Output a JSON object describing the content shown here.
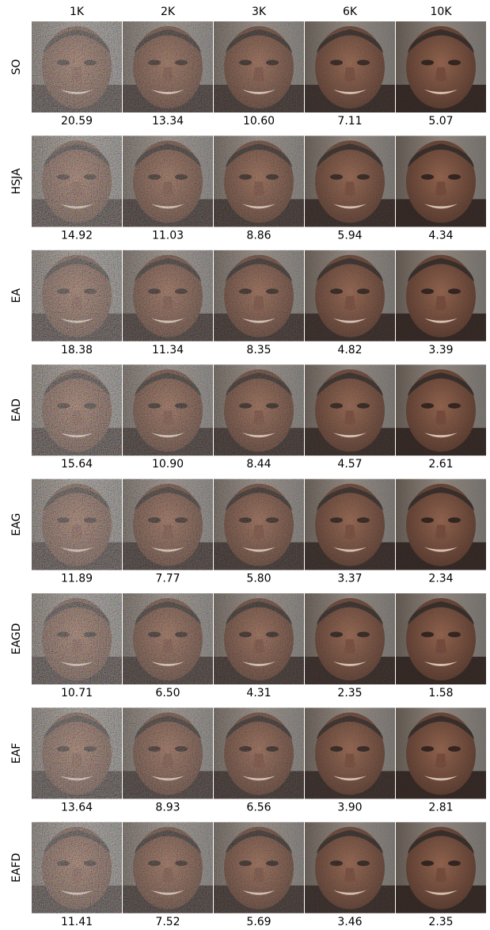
{
  "columns": [
    "1K",
    "2K",
    "3K",
    "6K",
    "10K"
  ],
  "rows": [
    {
      "label": "SO",
      "values": [
        "20.59",
        "13.34",
        "10.60",
        "7.11",
        "5.07"
      ]
    },
    {
      "label": "HSJA",
      "values": [
        "14.92",
        "11.03",
        "8.86",
        "5.94",
        "4.34"
      ]
    },
    {
      "label": "EA",
      "values": [
        "18.38",
        "11.34",
        "8.35",
        "4.82",
        "3.39"
      ]
    },
    {
      "label": "EAD",
      "values": [
        "15.64",
        "10.90",
        "8.44",
        "4.57",
        "2.61"
      ]
    },
    {
      "label": "EAG",
      "values": [
        "11.89",
        "7.77",
        "5.80",
        "3.37",
        "2.34"
      ]
    },
    {
      "label": "EAGD",
      "values": [
        "10.71",
        "6.50",
        "4.31",
        "2.35",
        "1.58"
      ]
    },
    {
      "label": "EAF",
      "values": [
        "13.64",
        "8.93",
        "6.56",
        "3.90",
        "2.81"
      ]
    },
    {
      "label": "EAFD",
      "values": [
        "11.41",
        "7.52",
        "5.69",
        "3.46",
        "2.35"
      ]
    }
  ]
}
